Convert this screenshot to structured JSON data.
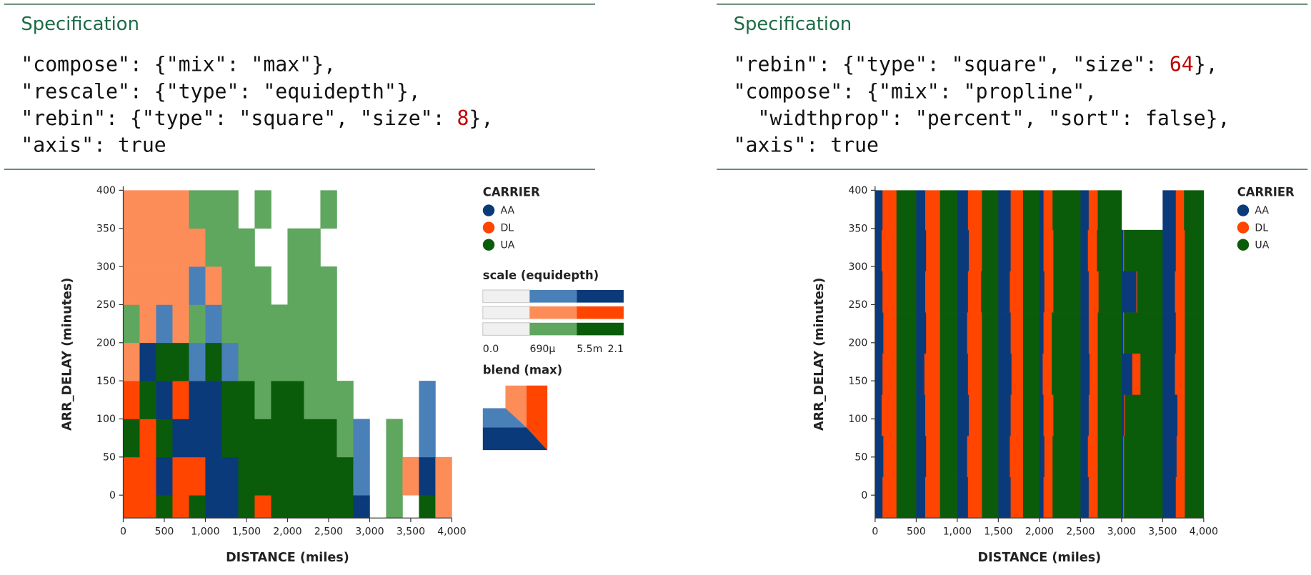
{
  "specs": [
    {
      "title": "Specification",
      "lines": [
        [
          "\"compose\": {\"mix\": \"max\"},"
        ],
        [
          "\"rescale\": {\"type\": \"equidepth\"},"
        ],
        [
          "\"rebin\": {\"type\": \"square\", \"size\": ",
          {
            "text": "8",
            "color": "#c00000"
          },
          "},"
        ],
        [
          "\"axis\": true"
        ]
      ]
    },
    {
      "title": "Specification",
      "lines": [
        [
          "\"rebin\": {\"type\": \"square\", \"size\": ",
          {
            "text": "64",
            "color": "#c00000"
          },
          "},"
        ],
        [
          "\"compose\": {\"mix\": \"propline\","
        ],
        [
          "  \"widthprop\": \"percent\", \"sort\": false},"
        ],
        [
          "\"axis\": true"
        ]
      ]
    }
  ],
  "chart_data": [
    {
      "type": "heatmap",
      "xlabel": "DISTANCE (miles)",
      "ylabel": "ARR_DELAY (minutes)",
      "xlim": [
        0,
        4000
      ],
      "ylim": [
        -30,
        400
      ],
      "xticks": [
        0,
        500,
        {
          "value": 1000,
          "label": "1,000"
        },
        {
          "value": 1500,
          "label": "1,500"
        },
        {
          "value": 2000,
          "label": "2,000"
        },
        {
          "value": 2500,
          "label": "2,500"
        },
        {
          "value": 3000,
          "label": "3,000"
        },
        {
          "value": 3500,
          "label": "3,500"
        },
        {
          "value": 4000,
          "label": "4,000"
        }
      ],
      "yticks": [
        0,
        50,
        100,
        150,
        200,
        250,
        300,
        350,
        400
      ],
      "xbins": [
        0,
        200,
        400,
        600,
        800,
        1000,
        1200,
        1400,
        1600,
        1800,
        2000,
        2200,
        2400,
        2600,
        2800,
        3000,
        3200,
        3400,
        3600,
        3800,
        4000
      ],
      "ybins": [
        -30,
        0,
        50,
        100,
        150,
        200,
        250,
        300,
        350,
        400
      ],
      "legend_title": "CARRIER",
      "series": [
        {
          "name": "AA",
          "color": "#0b3a7a",
          "ramp": [
            "#f0f0f0",
            "#4a80b8",
            "#0b3a7a"
          ],
          "values": [
            [
              0,
              0,
              0,
              0,
              0,
              3,
              3,
              0,
              0,
              0,
              0,
              0,
              0,
              0,
              3,
              0,
              0,
              0,
              0,
              0
            ],
            [
              0,
              0,
              3,
              0,
              0,
              3,
              3,
              0,
              0,
              0,
              0,
              0,
              0,
              0,
              2,
              0,
              0,
              0,
              3,
              0
            ],
            [
              0,
              0,
              0,
              3,
              3,
              3,
              0,
              0,
              0,
              0,
              0,
              0,
              0,
              0,
              2,
              0,
              0,
              0,
              2,
              0
            ],
            [
              0,
              0,
              3,
              0,
              3,
              3,
              0,
              0,
              0,
              0,
              0,
              0,
              0,
              0,
              0,
              0,
              0,
              0,
              2,
              0
            ],
            [
              0,
              3,
              0,
              0,
              2,
              0,
              2,
              0,
              0,
              0,
              0,
              0,
              0,
              0,
              0,
              0,
              0,
              0,
              0,
              0
            ],
            [
              0,
              0,
              2,
              0,
              0,
              2,
              0,
              0,
              0,
              0,
              0,
              0,
              0,
              0,
              0,
              0,
              0,
              0,
              0,
              0
            ],
            [
              0,
              0,
              0,
              0,
              2,
              0,
              0,
              0,
              0,
              0,
              0,
              0,
              0,
              0,
              0,
              0,
              0,
              0,
              0,
              0
            ],
            [
              0,
              0,
              0,
              0,
              0,
              0,
              0,
              0,
              0,
              0,
              0,
              0,
              0,
              0,
              0,
              0,
              0,
              0,
              0,
              0
            ],
            [
              0,
              0,
              0,
              0,
              0,
              0,
              0,
              0,
              0,
              0,
              0,
              0,
              0,
              0,
              0,
              0,
              0,
              0,
              0,
              0
            ]
          ]
        },
        {
          "name": "DL",
          "color": "#ff4500",
          "ramp": [
            "#f0f0f0",
            "#fc8d59",
            "#ff4500"
          ],
          "values": [
            [
              3,
              3,
              0,
              3,
              0,
              0,
              0,
              0,
              3,
              0,
              0,
              0,
              0,
              0,
              0,
              0,
              0,
              0,
              0,
              2
            ],
            [
              3,
              3,
              0,
              3,
              3,
              0,
              0,
              0,
              0,
              0,
              0,
              0,
              0,
              0,
              0,
              0,
              0,
              2,
              0,
              2
            ],
            [
              0,
              3,
              0,
              0,
              0,
              0,
              0,
              0,
              0,
              0,
              0,
              0,
              0,
              0,
              0,
              0,
              0,
              0,
              0,
              0
            ],
            [
              3,
              0,
              0,
              3,
              0,
              0,
              0,
              0,
              0,
              0,
              0,
              0,
              0,
              0,
              0,
              0,
              0,
              0,
              0,
              0
            ],
            [
              2,
              0,
              0,
              0,
              0,
              0,
              0,
              0,
              0,
              0,
              0,
              0,
              0,
              0,
              0,
              0,
              0,
              0,
              0,
              0
            ],
            [
              0,
              2,
              0,
              2,
              0,
              0,
              0,
              0,
              0,
              0,
              0,
              0,
              0,
              0,
              0,
              0,
              0,
              0,
              0,
              0
            ],
            [
              2,
              2,
              2,
              2,
              0,
              2,
              0,
              0,
              0,
              0,
              0,
              0,
              0,
              0,
              0,
              0,
              0,
              0,
              0,
              0
            ],
            [
              2,
              2,
              2,
              2,
              2,
              0,
              0,
              0,
              0,
              0,
              0,
              0,
              0,
              0,
              0,
              0,
              0,
              0,
              0,
              0
            ],
            [
              2,
              2,
              2,
              2,
              0,
              0,
              0,
              0,
              0,
              0,
              0,
              0,
              0,
              0,
              0,
              0,
              0,
              0,
              0,
              0
            ]
          ]
        },
        {
          "name": "UA",
          "color": "#0a5c0a",
          "ramp": [
            "#f0f0f0",
            "#5fa65f",
            "#0a5c0a"
          ],
          "values": [
            [
              0,
              0,
              3,
              0,
              3,
              0,
              0,
              3,
              0,
              3,
              3,
              3,
              3,
              3,
              0,
              0,
              2,
              0,
              3,
              0
            ],
            [
              0,
              0,
              0,
              0,
              0,
              0,
              0,
              3,
              3,
              3,
              3,
              3,
              3,
              3,
              0,
              0,
              2,
              0,
              0,
              0
            ],
            [
              3,
              0,
              3,
              0,
              0,
              0,
              3,
              3,
              3,
              3,
              3,
              3,
              3,
              2,
              0,
              0,
              2,
              0,
              0,
              0
            ],
            [
              0,
              3,
              0,
              0,
              0,
              0,
              3,
              3,
              2,
              3,
              3,
              2,
              2,
              2,
              0,
              0,
              0,
              0,
              0,
              0
            ],
            [
              0,
              0,
              3,
              3,
              0,
              3,
              0,
              2,
              2,
              2,
              2,
              2,
              2,
              0,
              0,
              0,
              0,
              0,
              0,
              0
            ],
            [
              2,
              0,
              0,
              0,
              2,
              0,
              2,
              2,
              2,
              2,
              2,
              2,
              2,
              0,
              0,
              0,
              0,
              0,
              0,
              0
            ],
            [
              0,
              0,
              0,
              0,
              0,
              0,
              2,
              2,
              2,
              0,
              2,
              2,
              2,
              0,
              0,
              0,
              0,
              0,
              0,
              0
            ],
            [
              0,
              0,
              0,
              0,
              0,
              2,
              2,
              2,
              0,
              0,
              2,
              2,
              0,
              0,
              0,
              0,
              0,
              0,
              0,
              0
            ],
            [
              0,
              0,
              0,
              0,
              2,
              2,
              2,
              0,
              2,
              0,
              0,
              0,
              2,
              0,
              0,
              0,
              0,
              0,
              0,
              0
            ]
          ]
        }
      ],
      "scale_title": "scale (equidepth)",
      "scale_ticks": [
        {
          "value": 0,
          "label": "0.0"
        },
        {
          "value": 0.00069,
          "label": "690μ"
        },
        {
          "value": 0.0055,
          "label": "5.5m"
        },
        2.1
      ],
      "blend_title": "blend (max)"
    },
    {
      "type": "propline",
      "xlabel": "DISTANCE (miles)",
      "ylabel": "ARR_DELAY (minutes)",
      "xlim": [
        0,
        4000
      ],
      "ylim": [
        -30,
        400
      ],
      "xticks": [
        0,
        500,
        {
          "value": 1000,
          "label": "1,000"
        },
        {
          "value": 1500,
          "label": "1,500"
        },
        {
          "value": 2000,
          "label": "2,000"
        },
        {
          "value": 2500,
          "label": "2,500"
        },
        {
          "value": 3000,
          "label": "3,000"
        },
        {
          "value": 3500,
          "label": "3,500"
        },
        {
          "value": 4000,
          "label": "4,000"
        }
      ],
      "yticks": [
        0,
        50,
        100,
        150,
        200,
        250,
        300,
        350,
        400
      ],
      "xbins": [
        0,
        500,
        1000,
        1500,
        2000,
        2500,
        3000,
        3500,
        4000
      ],
      "ybins": [
        -30,
        24,
        78,
        132,
        186,
        240,
        294,
        348,
        400
      ],
      "legend_title": "CARRIER",
      "series": [
        {
          "name": "AA",
          "color": "#0b3a7a",
          "values": [
            [
              18,
              22,
              26,
              30,
              10,
              20,
              4,
              32
            ],
            [
              20,
              24,
              24,
              28,
              12,
              18,
              4,
              34
            ],
            [
              16,
              22,
              28,
              30,
              10,
              20,
              6,
              36
            ],
            [
              18,
              20,
              26,
              32,
              8,
              22,
              26,
              30
            ],
            [
              20,
              24,
              24,
              30,
              10,
              20,
              4,
              32
            ],
            [
              18,
              22,
              26,
              28,
              12,
              20,
              36,
              30
            ],
            [
              16,
              24,
              28,
              30,
              10,
              18,
              4,
              32
            ],
            [
              18,
              22,
              26,
              30,
              10,
              20,
              0,
              32
            ]
          ]
        },
        {
          "name": "DL",
          "color": "#ff4500",
          "values": [
            [
              34,
              36,
              34,
              30,
              22,
              22,
              2,
              22
            ],
            [
              32,
              34,
              36,
              32,
              20,
              24,
              2,
              20
            ],
            [
              36,
              36,
              32,
              30,
              24,
              22,
              2,
              18
            ],
            [
              34,
              38,
              34,
              28,
              22,
              20,
              20,
              24
            ],
            [
              32,
              34,
              36,
              30,
              20,
              22,
              2,
              22
            ],
            [
              34,
              36,
              32,
              32,
              22,
              24,
              2,
              24
            ],
            [
              36,
              34,
              32,
              30,
              24,
              22,
              2,
              22
            ],
            [
              34,
              36,
              34,
              30,
              22,
              22,
              0,
              20
            ]
          ]
        },
        {
          "name": "UA",
          "color": "#0a5c0a",
          "values": [
            [
              48,
              42,
              40,
              40,
              68,
              58,
              94,
              46
            ],
            [
              48,
              42,
              40,
              40,
              68,
              58,
              94,
              46
            ],
            [
              48,
              42,
              40,
              40,
              66,
              58,
              92,
              46
            ],
            [
              48,
              42,
              40,
              40,
              70,
              58,
              54,
              46
            ],
            [
              48,
              42,
              40,
              40,
              70,
              58,
              94,
              46
            ],
            [
              48,
              42,
              42,
              40,
              66,
              56,
              62,
              46
            ],
            [
              48,
              42,
              40,
              40,
              66,
              60,
              94,
              46
            ],
            [
              48,
              42,
              40,
              40,
              68,
              58,
              0,
              48
            ]
          ]
        }
      ]
    }
  ]
}
